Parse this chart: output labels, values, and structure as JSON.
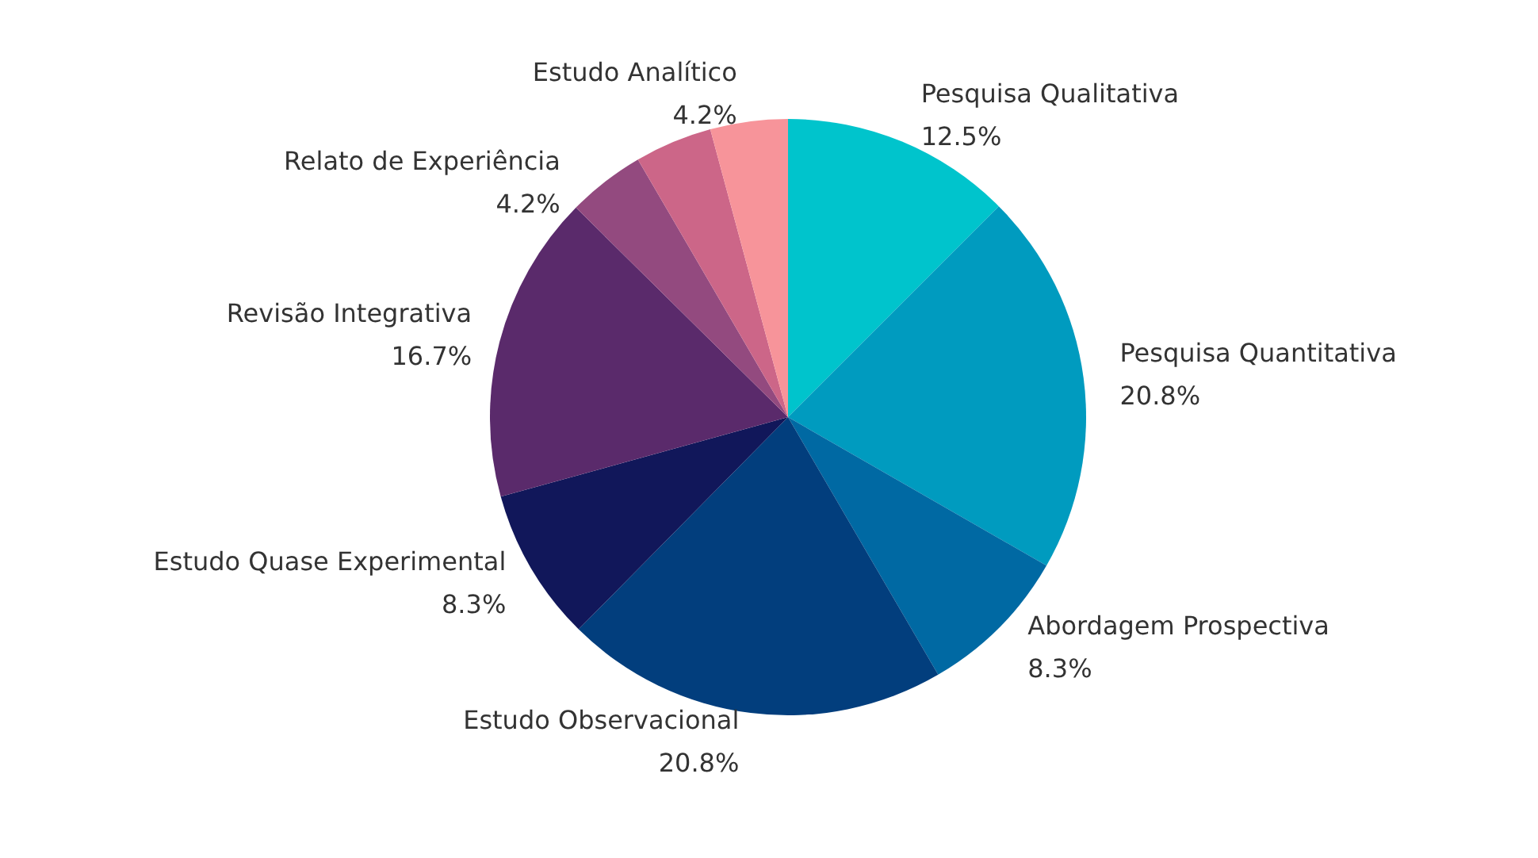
{
  "chart_data": {
    "type": "pie",
    "categories": [
      "Pesquisa Qualitativa",
      "Pesquisa Quantitativa",
      "Abordagem Prospectiva",
      "Estudo Observacional",
      "Estudo Quase Experimental",
      "Revisão Integrativa",
      "Relato de Experiência",
      null,
      "Estudo Analítico"
    ],
    "values": [
      12.5,
      20.8,
      8.3,
      20.8,
      8.3,
      16.7,
      4.2,
      4.2,
      4.2
    ],
    "colors": [
      "#00c4cc",
      "#009bbf",
      "#0069a3",
      "#023e7d",
      "#11175a",
      "#5a2a6b",
      "#934a7f",
      "#cc6688",
      "#f7949a"
    ],
    "value_labels": [
      "12.5%",
      "20.8%",
      "8.3%",
      "20.8%",
      "8.3%",
      "16.7%",
      "4.2%",
      null,
      "4.2%"
    ],
    "legend": false
  }
}
